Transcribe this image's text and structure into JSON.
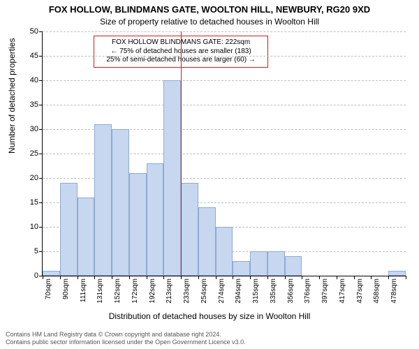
{
  "title": "FOX HOLLOW, BLINDMANS GATE, WOOLTON HILL, NEWBURY, RG20 9XD",
  "subtitle": "Size of property relative to detached houses in Woolton Hill",
  "ylabel": "Number of detached properties",
  "xlabel": "Distribution of detached houses by size in Woolton Hill",
  "footer_line1": "Contains HM Land Registry data © Crown copyright and database right 2024.",
  "footer_line2": "Contains public sector information licensed under the Open Government Licence v3.0.",
  "chart": {
    "type": "histogram",
    "background_color": "#ffffff",
    "bar_fill": "#c7d7ef",
    "bar_border": "#8faad3",
    "grid_color": "#bfbfbf",
    "axis_color": "#000000",
    "marker_color": "#d11d1d",
    "ymax": 50,
    "ytick_step": 5,
    "bars": [
      {
        "x_label": "70sqm",
        "value": 1
      },
      {
        "x_label": "90sqm",
        "value": 19
      },
      {
        "x_label": "111sqm",
        "value": 16
      },
      {
        "x_label": "131sqm",
        "value": 31
      },
      {
        "x_label": "152sqm",
        "value": 30
      },
      {
        "x_label": "172sqm",
        "value": 21
      },
      {
        "x_label": "192sqm",
        "value": 23
      },
      {
        "x_label": "213sqm",
        "value": 40
      },
      {
        "x_label": "233sqm",
        "value": 19
      },
      {
        "x_label": "254sqm",
        "value": 14
      },
      {
        "x_label": "274sqm",
        "value": 10
      },
      {
        "x_label": "294sqm",
        "value": 3
      },
      {
        "x_label": "315sqm",
        "value": 5
      },
      {
        "x_label": "335sqm",
        "value": 5
      },
      {
        "x_label": "356sqm",
        "value": 4
      },
      {
        "x_label": "376sqm",
        "value": 0
      },
      {
        "x_label": "397sqm",
        "value": 0
      },
      {
        "x_label": "417sqm",
        "value": 0
      },
      {
        "x_label": "437sqm",
        "value": 0
      },
      {
        "x_label": "458sqm",
        "value": 0
      },
      {
        "x_label": "478sqm",
        "value": 1
      }
    ],
    "marker_after_bar_index": 7,
    "annotation": {
      "line1": "FOX HOLLOW BLINDMANS GATE: 222sqm",
      "line2": "← 75% of detached houses are smaller (183)",
      "line3": "25% of semi-detached houses are larger (60) →"
    },
    "title_fontsize": 13,
    "subtitle_fontsize": 12,
    "label_fontsize": 12,
    "tick_fontsize": 11,
    "xtick_fontsize": 10,
    "annotation_fontsize": 10
  }
}
